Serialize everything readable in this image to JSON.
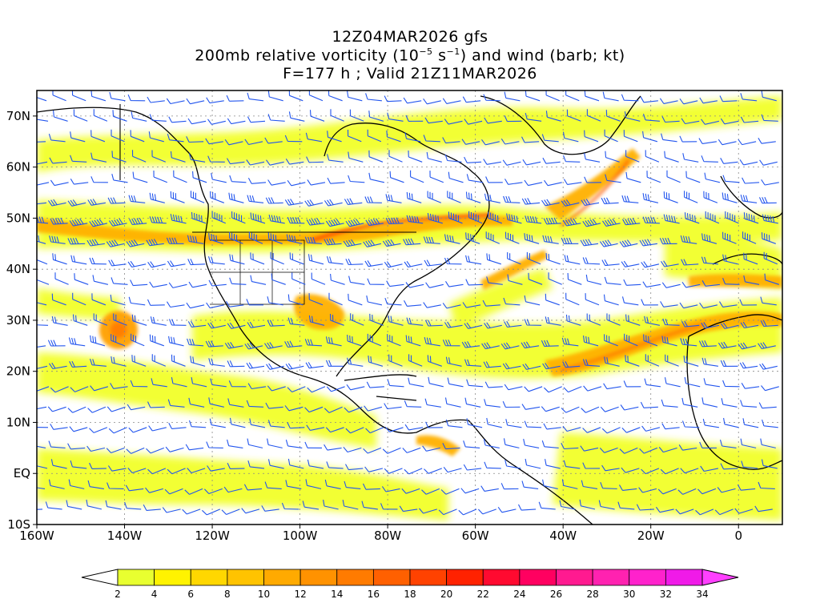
{
  "title": {
    "line1": "12Z04MAR2026 gfs",
    "line2_pre": "200mb relative vorticity (10",
    "line2_exp1": "−5",
    "line2_mid": " s",
    "line2_exp2": "−1",
    "line2_post": ") and wind (barb; kt)",
    "line3": "F=177 h ; Valid 21Z11MAR2026"
  },
  "map": {
    "lon_range": [
      -160,
      10
    ],
    "lat_range": [
      -10,
      75
    ],
    "lon_ticks": [
      {
        "value": -160,
        "label": "160W"
      },
      {
        "value": -140,
        "label": "140W"
      },
      {
        "value": -120,
        "label": "120W"
      },
      {
        "value": -100,
        "label": "100W"
      },
      {
        "value": -80,
        "label": "80W"
      },
      {
        "value": -60,
        "label": "60W"
      },
      {
        "value": -40,
        "label": "40W"
      },
      {
        "value": -20,
        "label": "20W"
      },
      {
        "value": 0,
        "label": "0"
      }
    ],
    "lat_ticks": [
      {
        "value": -10,
        "label": "10S"
      },
      {
        "value": 0,
        "label": "EQ"
      },
      {
        "value": 10,
        "label": "10N"
      },
      {
        "value": 20,
        "label": "20N"
      },
      {
        "value": 30,
        "label": "30N"
      },
      {
        "value": 40,
        "label": "40N"
      },
      {
        "value": 50,
        "label": "50N"
      },
      {
        "value": 60,
        "label": "60N"
      },
      {
        "value": 70,
        "label": "70N"
      }
    ],
    "barb_color": "#2255ee",
    "coast_color": "#000000"
  },
  "colorbar": {
    "levels": [
      "2",
      "4",
      "6",
      "8",
      "10",
      "12",
      "14",
      "16",
      "18",
      "20",
      "22",
      "24",
      "26",
      "28",
      "30",
      "32",
      "34"
    ],
    "colors": [
      "#e8ff30",
      "#fff300",
      "#ffd700",
      "#ffc300",
      "#ffaa00",
      "#ff9200",
      "#ff7b00",
      "#ff6000",
      "#ff4200",
      "#ff2200",
      "#ff0a30",
      "#ff0060",
      "#ff1a90",
      "#ff22b0",
      "#ff22cc",
      "#f01ae8"
    ],
    "under_color": "#ffffff",
    "over_color": "#ff40ff"
  }
}
